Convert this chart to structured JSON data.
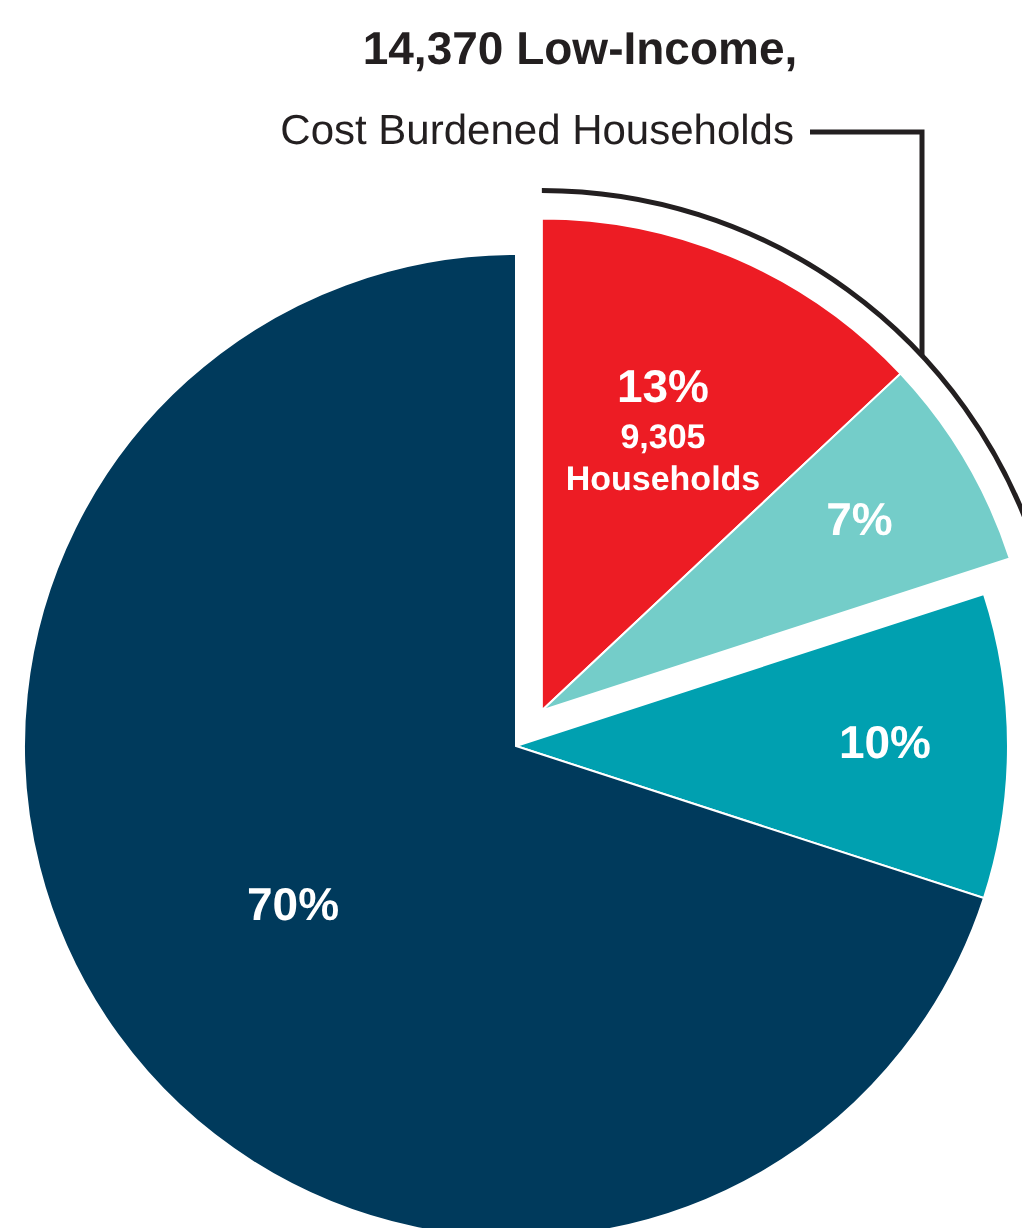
{
  "chart_data": {
    "type": "pie",
    "title": "14,370 Low-Income,",
    "subtitle": "Cost Burdened Households",
    "categories": [
      null,
      null,
      null,
      null
    ],
    "values": [
      13,
      7,
      10,
      70
    ],
    "colors": [
      "#ed1c24",
      "#74cdc9",
      "#00a0b0",
      "#003a5c"
    ],
    "value_labels": [
      "13%",
      "7%",
      "10%",
      "70%"
    ],
    "annotations": [
      "9,305 Households"
    ]
  }
}
